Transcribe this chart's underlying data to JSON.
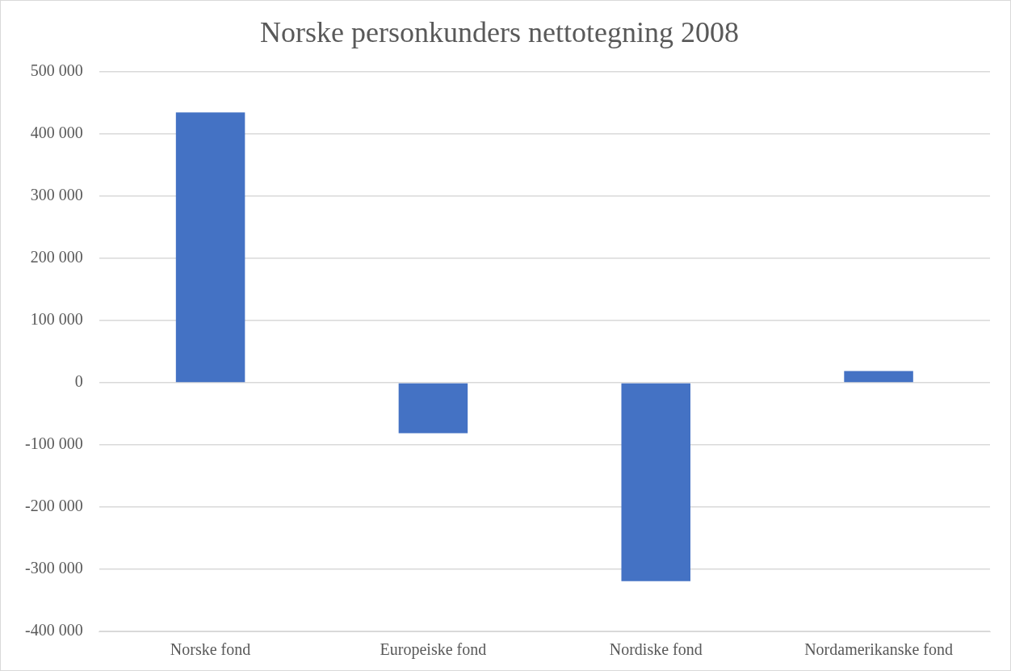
{
  "chart_data": {
    "type": "bar",
    "title": "Norske personkunders nettotegning 2008",
    "categories": [
      "Norske fond",
      "Europeiske fond",
      "Nordiske fond",
      "Nordamerikanske fond"
    ],
    "values": [
      435000,
      -81000,
      -319000,
      19000
    ],
    "color": "#4472c4",
    "ylim": [
      -400000,
      500000
    ],
    "yticks": [
      {
        "value": -400000,
        "label": "-400 000"
      },
      {
        "value": -300000,
        "label": "-300 000"
      },
      {
        "value": -200000,
        "label": "-200 000"
      },
      {
        "value": -100000,
        "label": "-100 000"
      },
      0,
      {
        "value": 100000,
        "label": "100 000"
      },
      {
        "value": 200000,
        "label": "200 000"
      },
      {
        "value": 300000,
        "label": "300 000"
      },
      {
        "value": 400000,
        "label": "400 000"
      },
      {
        "value": 500000,
        "label": "500 000"
      }
    ],
    "grid": "y"
  }
}
